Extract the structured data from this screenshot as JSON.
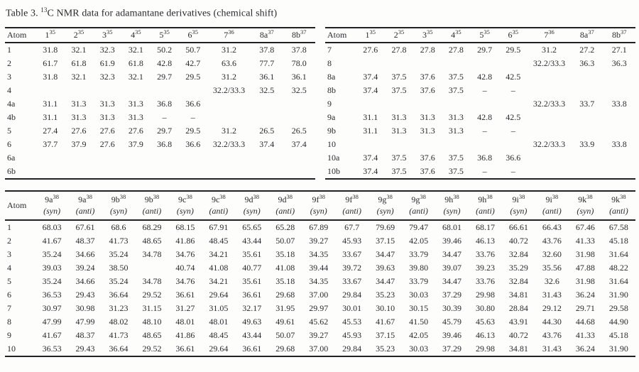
{
  "title": {
    "prefix": "Table 3. ",
    "sup": "13",
    "rest": "C NMR data for adamantane derivatives (chemical shift)"
  },
  "tables": {
    "top_left": {
      "atom_header": "Atom",
      "columns": [
        {
          "label": "1",
          "sup": "35"
        },
        {
          "label": "2",
          "sup": "35"
        },
        {
          "label": "3",
          "sup": "35"
        },
        {
          "label": "4",
          "sup": "35"
        },
        {
          "label": "5",
          "sup": "35"
        },
        {
          "label": "6",
          "sup": "35"
        },
        {
          "label": "7",
          "sup": "36"
        },
        {
          "label": "8a",
          "sup": "37"
        },
        {
          "label": "8b",
          "sup": "37"
        }
      ],
      "rows": [
        {
          "atom": "1",
          "values": [
            "31.8",
            "32.1",
            "32.3",
            "32.1",
            "50.2",
            "50.7",
            "31.2",
            "37.8",
            "37.8"
          ]
        },
        {
          "atom": "2",
          "values": [
            "61.7",
            "61.8",
            "61.9",
            "61.8",
            "42.8",
            "42.7",
            "63.6",
            "77.7",
            "78.0"
          ]
        },
        {
          "atom": "3",
          "values": [
            "31.8",
            "32.1",
            "32.3",
            "32.1",
            "29.7",
            "29.5",
            "31.2",
            "36.1",
            "36.1"
          ]
        },
        {
          "atom": "4",
          "values": [
            "",
            "",
            "",
            "",
            "",
            "",
            "32.2/33.3",
            "32.5",
            "32.5"
          ]
        },
        {
          "atom": "4a",
          "values": [
            "31.1",
            "31.3",
            "31.3",
            "31.3",
            "36.8",
            "36.6",
            "",
            "",
            ""
          ]
        },
        {
          "atom": "4b",
          "values": [
            "31.1",
            "31.3",
            "31.3",
            "31.3",
            "–",
            "–",
            "",
            "",
            ""
          ]
        },
        {
          "atom": "5",
          "values": [
            "27.4",
            "27.6",
            "27.6",
            "27.6",
            "29.7",
            "29.5",
            "31.2",
            "26.5",
            "26.5"
          ]
        },
        {
          "atom": "6",
          "values": [
            "37.7",
            "37.9",
            "27.6",
            "37.9",
            "36.8",
            "36.6",
            "32.2/33.3",
            "37.4",
            "37.4"
          ]
        },
        {
          "atom": "6a",
          "values": [
            "",
            "",
            "",
            "",
            "",
            "",
            "",
            "",
            ""
          ]
        },
        {
          "atom": "6b",
          "values": [
            "",
            "",
            "",
            "",
            "",
            "",
            "",
            "",
            ""
          ]
        }
      ]
    },
    "top_right": {
      "atom_header": "Atom",
      "columns": [
        {
          "label": "1",
          "sup": "35"
        },
        {
          "label": "2",
          "sup": "35"
        },
        {
          "label": "3",
          "sup": "35"
        },
        {
          "label": "4",
          "sup": "35"
        },
        {
          "label": "5",
          "sup": "35"
        },
        {
          "label": "6",
          "sup": "35"
        },
        {
          "label": "7",
          "sup": "36"
        },
        {
          "label": "8a",
          "sup": "37"
        },
        {
          "label": "8b",
          "sup": "37"
        }
      ],
      "rows": [
        {
          "atom": "7",
          "values": [
            "27.6",
            "27.8",
            "27.8",
            "27.8",
            "29.7",
            "29.5",
            "31.2",
            "27.2",
            "27.1"
          ]
        },
        {
          "atom": "8",
          "values": [
            "",
            "",
            "",
            "",
            "",
            "",
            "32.2/33.3",
            "36.3",
            "36.3"
          ]
        },
        {
          "atom": "8a",
          "values": [
            "37.4",
            "37.5",
            "37.6",
            "37.5",
            "42.8",
            "42.5",
            "",
            "",
            ""
          ]
        },
        {
          "atom": "8b",
          "values": [
            "37.4",
            "37.5",
            "37.6",
            "37.5",
            "–",
            "–",
            "",
            "",
            ""
          ]
        },
        {
          "atom": "9",
          "values": [
            "",
            "",
            "",
            "",
            "",
            "",
            "32.2/33.3",
            "33.7",
            "33.8"
          ]
        },
        {
          "atom": "9a",
          "values": [
            "31.1",
            "31.3",
            "31.3",
            "31.3",
            "42.8",
            "42.5",
            "",
            "",
            ""
          ]
        },
        {
          "atom": "9b",
          "values": [
            "31.1",
            "31.3",
            "31.3",
            "31.3",
            "–",
            "–",
            "",
            "",
            ""
          ]
        },
        {
          "atom": "10",
          "values": [
            "",
            "",
            "",
            "",
            "",
            "",
            "32.2/33.3",
            "33.9",
            "33.8"
          ]
        },
        {
          "atom": "10a",
          "values": [
            "37.4",
            "37.5",
            "37.6",
            "37.5",
            "36.8",
            "36.6",
            "",
            "",
            ""
          ]
        },
        {
          "atom": "10b",
          "values": [
            "37.4",
            "37.5",
            "37.6",
            "37.5",
            "–",
            "–",
            "",
            "",
            ""
          ]
        }
      ]
    },
    "bottom": {
      "atom_header": "Atom",
      "columns": [
        {
          "label": "9a",
          "sup": "38",
          "variant": "(syn)"
        },
        {
          "label": "9a",
          "sup": "38",
          "variant": "(anti)"
        },
        {
          "label": "9b",
          "sup": "38",
          "variant": "(syn)"
        },
        {
          "label": "9b",
          "sup": "38",
          "variant": "(anti)"
        },
        {
          "label": "9c",
          "sup": "38",
          "variant": "(syn)"
        },
        {
          "label": "9c",
          "sup": "38",
          "variant": "(anti)"
        },
        {
          "label": "9d",
          "sup": "38",
          "variant": "(syn)"
        },
        {
          "label": "9d",
          "sup": "38",
          "variant": "(anti)"
        },
        {
          "label": "9f",
          "sup": "38",
          "variant": "(syn)"
        },
        {
          "label": "9f",
          "sup": "38",
          "variant": "(anti)"
        },
        {
          "label": "9g",
          "sup": "38",
          "variant": "(syn)"
        },
        {
          "label": "9g",
          "sup": "38",
          "variant": "(anti)"
        },
        {
          "label": "9h",
          "sup": "38",
          "variant": "(syn)"
        },
        {
          "label": "9h",
          "sup": "38",
          "variant": "(anti)"
        },
        {
          "label": "9i",
          "sup": "38",
          "variant": "(syn)"
        },
        {
          "label": "9i",
          "sup": "38",
          "variant": "(anti)"
        },
        {
          "label": "9k",
          "sup": "38",
          "variant": "(syn)"
        },
        {
          "label": "9k",
          "sup": "38",
          "variant": "(anti)"
        }
      ],
      "rows": [
        {
          "atom": "1",
          "values": [
            "68.03",
            "67.61",
            "68.6",
            "68.29",
            "68.15",
            "67.91",
            "65.65",
            "65.28",
            "67.89",
            "67.7",
            "79.69",
            "79.47",
            "68.01",
            "68.17",
            "66.61",
            "66.43",
            "67.46",
            "67.58"
          ]
        },
        {
          "atom": "2",
          "values": [
            "41.67",
            "48.37",
            "41.73",
            "48.65",
            "41.86",
            "48.45",
            "43.44",
            "50.07",
            "39.27",
            "45.93",
            "37.15",
            "42.05",
            "39.46",
            "46.13",
            "40.72",
            "43.76",
            "41.33",
            "45.18"
          ]
        },
        {
          "atom": "3",
          "values": [
            "35.24",
            "34.66",
            "35.24",
            "34.78",
            "34.76",
            "34.21",
            "35.61",
            "35.18",
            "34.35",
            "33.67",
            "34.47",
            "33.79",
            "34.47",
            "33.76",
            "32.84",
            "32.60",
            "31.98",
            "31.64"
          ]
        },
        {
          "atom": "4",
          "values": [
            "39.03",
            "39.24",
            "38.50",
            "",
            "40.74",
            "41.08",
            "40.77",
            "41.08",
            "39.44",
            "39.72",
            "39.63",
            "39.80",
            "39.07",
            "39.23",
            "35.29",
            "35.56",
            "47.88",
            "48.22"
          ]
        },
        {
          "atom": "5",
          "values": [
            "35.24",
            "34.66",
            "35.24",
            "34.78",
            "34.76",
            "34.21",
            "35.61",
            "35.18",
            "34.35",
            "33.67",
            "34.47",
            "33.79",
            "34.47",
            "33.76",
            "32.84",
            "32.6",
            "31.98",
            "31.64"
          ]
        },
        {
          "atom": "6",
          "values": [
            "36.53",
            "29.43",
            "36.64",
            "29.52",
            "36.61",
            "29.64",
            "36.61",
            "29.68",
            "37.00",
            "29.84",
            "35.23",
            "30.03",
            "37.29",
            "29.98",
            "34.81",
            "31.43",
            "36.24",
            "31.90"
          ]
        },
        {
          "atom": "7",
          "values": [
            "30.97",
            "30.98",
            "31.23",
            "31.15",
            "31.27",
            "31.05",
            "32.17",
            "31.95",
            "29.97",
            "30.01",
            "30.10",
            "30.15",
            "30.39",
            "30.80",
            "28.84",
            "29.12",
            "29.71",
            "29.58"
          ]
        },
        {
          "atom": "8",
          "values": [
            "47.99",
            "47.99",
            "48.02",
            "48.10",
            "48.01",
            "48.01",
            "49.63",
            "49.61",
            "45.62",
            "45.53",
            "41.67",
            "41.50",
            "45.79",
            "45.63",
            "43.91",
            "44.30",
            "44.68",
            "44.90"
          ]
        },
        {
          "atom": "9",
          "values": [
            "41.67",
            "48.37",
            "41.73",
            "48.65",
            "41.86",
            "48.45",
            "43.44",
            "50.07",
            "39.27",
            "45.93",
            "37.15",
            "42.05",
            "39.46",
            "46.13",
            "40.72",
            "43.76",
            "41.33",
            "45.18"
          ]
        },
        {
          "atom": "10",
          "values": [
            "36.53",
            "29.43",
            "36.64",
            "29.52",
            "36.61",
            "29.64",
            "36.61",
            "29.68",
            "37.00",
            "29.84",
            "35.23",
            "30.03",
            "37.29",
            "29.98",
            "34.81",
            "31.43",
            "36.24",
            "31.90"
          ]
        }
      ]
    }
  }
}
